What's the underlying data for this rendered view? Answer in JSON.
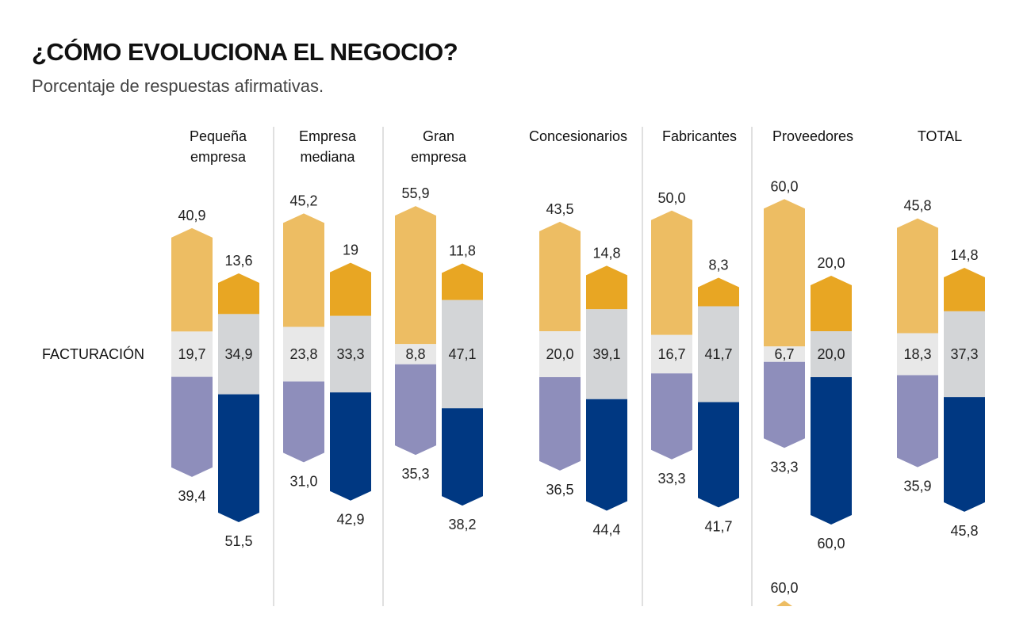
{
  "chart_data": {
    "type": "bar",
    "title": "¿CÓMO EVOLUCIONA EL NEGOCIO?",
    "subtitle": "Porcentaje de respuestas afirmativas.",
    "row_label": "FACTURACIÓN",
    "colors": {
      "left_up": "#EDBD63",
      "left_mid": "#E8E8E8",
      "left_down": "#8E8EBB",
      "right_up": "#E8A623",
      "right_mid": "#D3D5D7",
      "right_down": "#003882",
      "divider": "#D6D6D6"
    },
    "groups": [
      {
        "label": [
          "Pequeña",
          "empresa"
        ],
        "left": {
          "up": "40,9",
          "mid": "19,7",
          "down": "39,4"
        },
        "right": {
          "up": "13,6",
          "mid": "34,9",
          "down": "51,5"
        }
      },
      {
        "label": [
          "Empresa",
          "mediana"
        ],
        "left": {
          "up": "45,2",
          "mid": "23,8",
          "down": "31,0"
        },
        "right": {
          "up": "19",
          "mid": "33,3",
          "down": "42,9"
        }
      },
      {
        "label": [
          "Gran",
          "empresa"
        ],
        "left": {
          "up": "55,9",
          "mid": "8,8",
          "down": "35,3"
        },
        "right": {
          "up": "11,8",
          "mid": "47,1",
          "down": "38,2"
        }
      },
      {
        "label": [
          "Concesionarios"
        ],
        "left": {
          "up": "43,5",
          "mid": "20,0",
          "down": "36,5"
        },
        "right": {
          "up": "14,8",
          "mid": "39,1",
          "down": "44,4"
        }
      },
      {
        "label": [
          "Fabricantes"
        ],
        "left": {
          "up": "50,0",
          "mid": "16,7",
          "down": "33,3"
        },
        "right": {
          "up": "8,3",
          "mid": "41,7",
          "down": "41,7"
        }
      },
      {
        "label": [
          "Proveedores"
        ],
        "left": {
          "up": "60,0",
          "mid": "6,7",
          "down": "33,3"
        },
        "right": {
          "up": "20,0",
          "mid": "20,0",
          "down": "60,0"
        }
      },
      {
        "label": [
          "TOTAL"
        ],
        "left": {
          "up": "45,8",
          "mid": "18,3",
          "down": "35,9"
        },
        "right": {
          "up": "14,8",
          "mid": "37,3",
          "down": "45,8"
        }
      }
    ],
    "extra_label": "60,0"
  }
}
